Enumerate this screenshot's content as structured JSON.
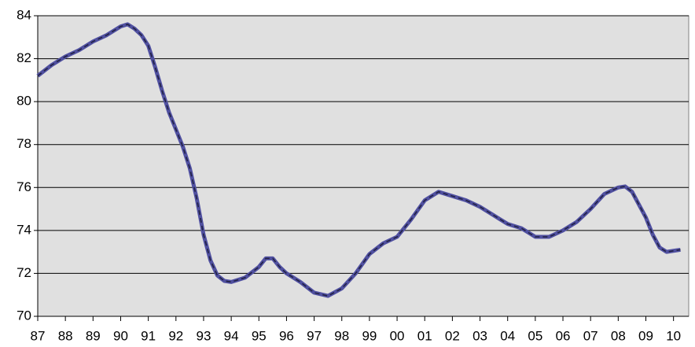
{
  "chart_data": {
    "type": "line",
    "x": [
      1987.0,
      1987.5,
      1988.0,
      1988.5,
      1989.0,
      1989.5,
      1990.0,
      1990.25,
      1990.5,
      1990.75,
      1991.0,
      1991.25,
      1991.5,
      1991.75,
      1992.0,
      1992.25,
      1992.5,
      1992.75,
      1993.0,
      1993.25,
      1993.5,
      1993.75,
      1994.0,
      1994.5,
      1995.0,
      1995.25,
      1995.5,
      1995.75,
      1996.0,
      1996.5,
      1997.0,
      1997.5,
      1998.0,
      1998.5,
      1999.0,
      1999.5,
      2000.0,
      2000.5,
      2001.0,
      2001.5,
      2002.0,
      2002.5,
      2003.0,
      2003.5,
      2004.0,
      2004.5,
      2005.0,
      2005.5,
      2006.0,
      2006.5,
      2007.0,
      2007.5,
      2008.0,
      2008.25,
      2008.5,
      2009.0,
      2009.25,
      2009.5,
      2009.75,
      2010.0,
      2010.25
    ],
    "series": [
      {
        "color": "#5050a0",
        "values": [
          81.2,
          81.7,
          82.1,
          82.4,
          82.8,
          83.1,
          83.5,
          83.6,
          83.4,
          83.1,
          82.6,
          81.6,
          80.5,
          79.5,
          78.7,
          77.9,
          76.9,
          75.5,
          73.8,
          72.6,
          71.9,
          71.65,
          71.6,
          71.8,
          72.3,
          72.7,
          72.7,
          72.3,
          72.0,
          71.6,
          71.1,
          70.95,
          71.3,
          72.0,
          72.9,
          73.4,
          73.7,
          74.5,
          75.4,
          75.8,
          75.6,
          75.4,
          75.1,
          74.7,
          74.3,
          74.1,
          73.7,
          73.7,
          74.0,
          74.4,
          75.0,
          75.7,
          76.0,
          76.05,
          75.8,
          74.6,
          73.8,
          73.2,
          73.0,
          73.05,
          73.1
        ]
      }
    ],
    "xlim": [
      1987,
      2010.55
    ],
    "xticks": [
      {
        "value": 1987,
        "label": "87"
      },
      {
        "value": 1988,
        "label": "88"
      },
      {
        "value": 1989,
        "label": "89"
      },
      {
        "value": 1990,
        "label": "90"
      },
      {
        "value": 1991,
        "label": "91"
      },
      {
        "value": 1992,
        "label": "92"
      },
      {
        "value": 1993,
        "label": "93"
      },
      {
        "value": 1994,
        "label": "94"
      },
      {
        "value": 1995,
        "label": "95"
      },
      {
        "value": 1996,
        "label": "96"
      },
      {
        "value": 1997,
        "label": "97"
      },
      {
        "value": 1998,
        "label": "98"
      },
      {
        "value": 1999,
        "label": "99"
      },
      {
        "value": 2000,
        "label": "00"
      },
      {
        "value": 2001,
        "label": "01"
      },
      {
        "value": 2002,
        "label": "02"
      },
      {
        "value": 2003,
        "label": "03"
      },
      {
        "value": 2004,
        "label": "04"
      },
      {
        "value": 2005,
        "label": "05"
      },
      {
        "value": 2006,
        "label": "06"
      },
      {
        "value": 2007,
        "label": "07"
      },
      {
        "value": 2008,
        "label": "08"
      },
      {
        "value": 2009,
        "label": "09"
      },
      {
        "value": 2010,
        "label": "10"
      }
    ],
    "ylim": [
      70,
      84
    ],
    "yticks": [
      70,
      72,
      74,
      76,
      78,
      80,
      82,
      84
    ],
    "grid": true
  }
}
